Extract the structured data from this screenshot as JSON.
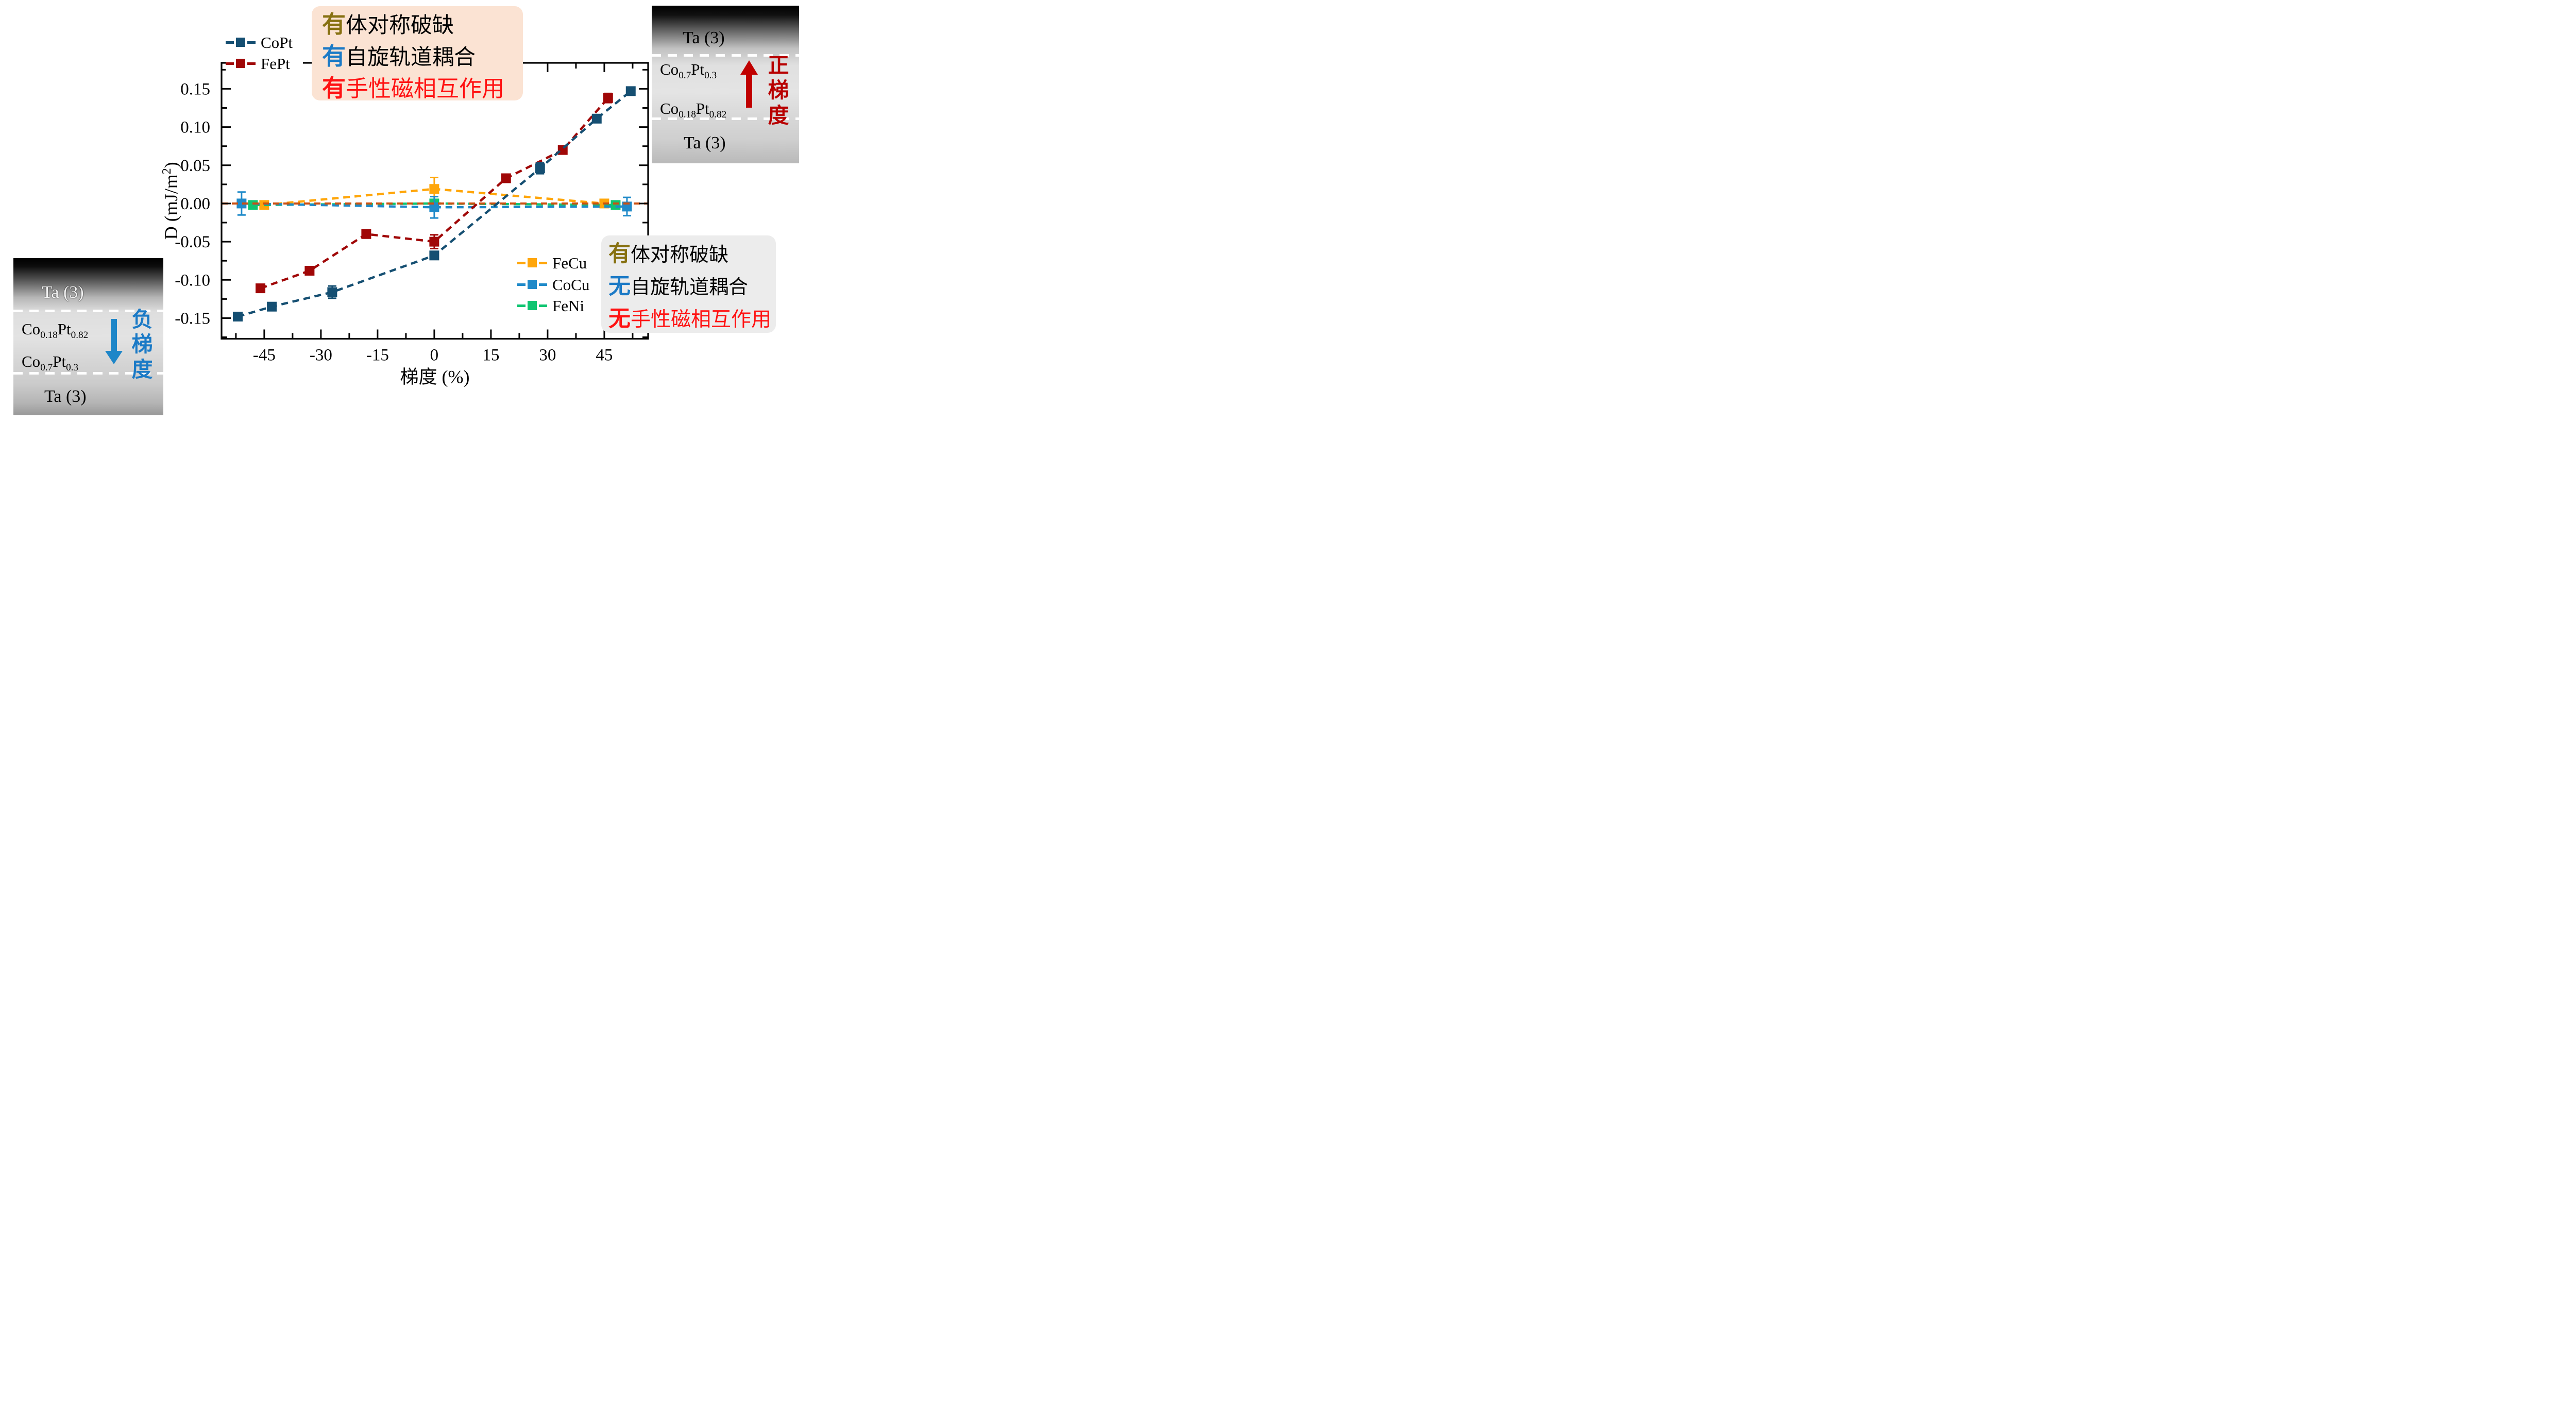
{
  "chart_data": {
    "type": "scatter-line",
    "xlabel": "梯度 (%)",
    "ylabel": {
      "pre": "D (mJ/m",
      "sup": "2",
      "post": ")"
    },
    "xlim": [
      -56.3,
      56.6
    ],
    "ylim": [
      -0.177,
      0.184
    ],
    "grid": false,
    "legend_position": {
      "CoPt_FePt": "upper-left",
      "FeCu_CoCu_FeNi": "lower-right"
    },
    "xticks": {
      "major": [
        -45,
        -30,
        -15,
        0,
        15,
        30,
        45
      ],
      "labels": [
        "-45",
        "-30",
        "-15",
        "0",
        "15",
        "30",
        "45"
      ],
      "minor": [
        -52.5,
        -37.5,
        -22.5,
        -7.5,
        7.5,
        22.5,
        37.5,
        52.5
      ]
    },
    "yticks": {
      "major": [
        0.15,
        0.1,
        0.05,
        0.0,
        -0.05,
        -0.1,
        -0.15
      ],
      "labels": [
        "0.15",
        "0.10",
        "0.05",
        "0.00",
        "-0.05",
        "-0.10",
        "-0.15"
      ],
      "minor": [
        0.175,
        0.125,
        0.075,
        0.025,
        -0.025,
        -0.075,
        -0.125,
        -0.175
      ]
    },
    "zero_line": {
      "y": 0.0,
      "color": "#cc5010",
      "style": "dashed"
    },
    "series": [
      {
        "name": "FeCu",
        "color": "#ffa60a",
        "x": [
          -45,
          0,
          45
        ],
        "y": [
          -0.002,
          0.019,
          0.0
        ],
        "err": [
          0,
          0.015,
          0
        ]
      },
      {
        "name": "FeNi",
        "color": "#0fc571",
        "x": [
          -48,
          0,
          48
        ],
        "y": [
          -0.002,
          0.0,
          -0.002
        ],
        "err": [
          0,
          0,
          0
        ]
      },
      {
        "name": "CoCu",
        "color": "#1f8ac9",
        "x": [
          -51,
          0,
          51
        ],
        "y": [
          0.0,
          -0.005,
          -0.004
        ],
        "err": [
          0.015,
          0.014,
          0.012
        ]
      },
      {
        "name": "FePt",
        "color": "#a00707",
        "x": [
          -46,
          -33,
          -18,
          0,
          19,
          34,
          46
        ],
        "y": [
          -0.111,
          -0.088,
          -0.04,
          -0.05,
          0.033,
          0.07,
          0.138
        ],
        "err": [
          0,
          0,
          0,
          0.009,
          0,
          0,
          0.006
        ]
      },
      {
        "name": "CoPt",
        "color": "#154f72",
        "x": [
          -52,
          -43,
          -27,
          0,
          28,
          43,
          52
        ],
        "y": [
          -0.148,
          -0.135,
          -0.116,
          -0.068,
          0.046,
          0.111,
          0.147
        ],
        "err": [
          0,
          0,
          0.008,
          0.005,
          0.007,
          0,
          0
        ]
      }
    ]
  },
  "legend1": {
    "items": [
      {
        "label": "CoPt",
        "color": "#154f72"
      },
      {
        "label": "FePt",
        "color": "#a00707"
      }
    ]
  },
  "legend2": {
    "items": [
      {
        "label": "FeCu",
        "color": "#ffa60a"
      },
      {
        "label": "CoCu",
        "color": "#1f8ac9"
      },
      {
        "label": "FeNi",
        "color": "#0fc571"
      }
    ]
  },
  "annotation_top": {
    "bg": "#fbe3d3",
    "lines": [
      {
        "lead": "有",
        "lead_color": "#877111",
        "rest": "体对称破缺",
        "rest_color": "#000000"
      },
      {
        "lead": "有",
        "lead_color": "#1b7ac6",
        "rest": "自旋轨道耦合",
        "rest_color": "#000000"
      },
      {
        "lead": "有",
        "lead_color": "#ff1212",
        "rest": "手性磁相互作用",
        "rest_color": "#ff1212"
      }
    ]
  },
  "annotation_bottom": {
    "bg": "#ececec",
    "lines": [
      {
        "lead": "有",
        "lead_color": "#877111",
        "rest": "体对称破缺",
        "rest_color": "#000000"
      },
      {
        "lead": "无",
        "lead_color": "#1b7ac6",
        "rest": "自旋轨道耦合",
        "rest_color": "#000000"
      },
      {
        "lead": "无",
        "lead_color": "#ff1212",
        "rest": "手性磁相互作用",
        "rest_color": "#ff1212"
      }
    ]
  },
  "inset_left": {
    "layer_top": "Ta (3)",
    "formula1": {
      "el1": "Co",
      "sub1": "0.18",
      "el2": "Pt",
      "sub2": "0.82"
    },
    "formula2": {
      "el1": "Co",
      "sub1": "0.7",
      "el2": "Pt",
      "sub2": "0.3"
    },
    "layer_bottom": "Ta (3)",
    "caption": {
      "c0": "负",
      "c1": "梯",
      "c2": "度"
    },
    "caption_color": "#1b7ac6",
    "arrow_direction": "down",
    "arrow_color": "#1e86c8"
  },
  "inset_right": {
    "layer_top": "Ta (3)",
    "formula1": {
      "el1": "Co",
      "sub1": "0.7",
      "el2": "Pt",
      "sub2": "0.3"
    },
    "formula2": {
      "el1": "Co",
      "sub1": "0.18",
      "el2": "Pt",
      "sub2": "0.82"
    },
    "layer_bottom": "Ta (3)",
    "caption": {
      "c0": "正",
      "c1": "梯",
      "c2": "度"
    },
    "caption_color": "#b80000",
    "arrow_direction": "up",
    "arrow_color": "#c00000"
  }
}
